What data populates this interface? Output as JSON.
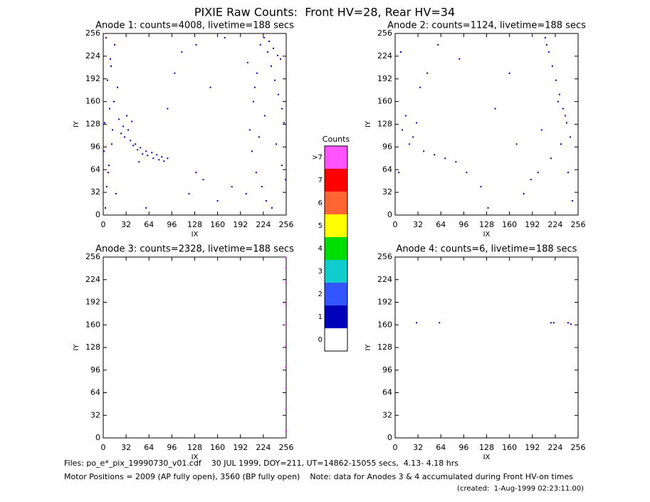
{
  "title": "PIXIE Raw Counts:  Front HV=28, Rear HV=34",
  "chart_data": [
    {
      "type": "scatter",
      "title": "Anode 1: counts=4008, livetime=188 secs",
      "x_label": "IX",
      "y_label": "IY",
      "xlim": [
        0,
        256
      ],
      "ylim": [
        0,
        256
      ],
      "xticks": [
        0,
        32,
        64,
        96,
        128,
        160,
        192,
        224,
        256
      ],
      "yticks": [
        0,
        32,
        64,
        96,
        128,
        160,
        192,
        224,
        256
      ],
      "color": "#0000cc",
      "x": [
        3,
        5,
        8,
        12,
        2,
        15,
        6,
        10,
        4,
        18,
        7,
        1,
        13,
        9,
        20,
        11,
        16,
        25,
        30,
        38,
        45,
        52,
        60,
        68,
        75,
        82,
        90,
        28,
        35,
        42,
        48,
        55,
        62,
        70,
        78,
        85,
        22,
        33,
        40,
        50,
        120,
        140,
        160,
        180,
        100,
        110,
        150,
        170,
        60,
        90,
        130,
        200,
        205,
        210,
        215,
        220,
        225,
        230,
        235,
        240,
        245,
        250,
        253,
        208,
        214,
        222,
        228,
        236,
        242,
        248,
        212,
        226,
        232,
        238,
        244,
        218,
        250,
        255,
        202,
        130
      ],
      "values": [
        10,
        40,
        70,
        100,
        130,
        160,
        190,
        220,
        250,
        30,
        60,
        90,
        120,
        150,
        180,
        210,
        240,
        115,
        110,
        105,
        100,
        95,
        90,
        88,
        85,
        82,
        80,
        125,
        120,
        98,
        92,
        86,
        84,
        80,
        78,
        76,
        135,
        140,
        132,
        75,
        30,
        50,
        20,
        40,
        200,
        230,
        180,
        250,
        10,
        150,
        60,
        30,
        120,
        160,
        200,
        240,
        250,
        230,
        210,
        190,
        170,
        150,
        130,
        90,
        60,
        40,
        20,
        10,
        100,
        220,
        180,
        140,
        245,
        235,
        225,
        110,
        70,
        50,
        215,
        240
      ]
    },
    {
      "type": "scatter",
      "title": "Anode 2: counts=1124, livetime=188 secs",
      "x_label": "IX",
      "y_label": "IY",
      "xlim": [
        0,
        256
      ],
      "ylim": [
        0,
        256
      ],
      "xticks": [
        0,
        32,
        64,
        96,
        128,
        160,
        192,
        224,
        256
      ],
      "yticks": [
        0,
        32,
        64,
        96,
        128,
        160,
        192,
        224,
        256
      ],
      "color": "#0000cc",
      "x": [
        5,
        10,
        15,
        20,
        8,
        25,
        30,
        40,
        55,
        70,
        85,
        100,
        120,
        140,
        160,
        180,
        200,
        210,
        215,
        220,
        225,
        230,
        235,
        240,
        245,
        248,
        212,
        228,
        238,
        60,
        90,
        130,
        170,
        190,
        35,
        45,
        205,
        218,
        232,
        242
      ],
      "values": [
        60,
        120,
        140,
        100,
        230,
        110,
        130,
        90,
        85,
        80,
        75,
        60,
        40,
        150,
        200,
        30,
        60,
        250,
        230,
        210,
        190,
        170,
        150,
        130,
        110,
        20,
        240,
        160,
        140,
        240,
        220,
        10,
        100,
        50,
        180,
        200,
        120,
        80,
        100,
        60
      ]
    },
    {
      "type": "scatter",
      "title": "Anode 3: counts=2328, livetime=188 secs",
      "x_label": "IX",
      "y_label": "IY",
      "xlim": [
        0,
        256
      ],
      "ylim": [
        0,
        256
      ],
      "xticks": [
        0,
        32,
        64,
        96,
        128,
        160,
        192,
        224,
        256
      ],
      "yticks": [
        0,
        32,
        64,
        96,
        128,
        160,
        192,
        224,
        256
      ],
      "color": "#ff55ff",
      "x": [
        255,
        255,
        255,
        255,
        255,
        255,
        255,
        255,
        255,
        255
      ],
      "values": [
        10,
        40,
        70,
        100,
        130,
        160,
        190,
        220,
        240,
        255
      ]
    },
    {
      "type": "scatter",
      "title": "Anode 4: counts=6, livetime=188 secs",
      "x_label": "IX",
      "y_label": "IY",
      "xlim": [
        0,
        256
      ],
      "ylim": [
        0,
        256
      ],
      "xticks": [
        0,
        32,
        64,
        96,
        128,
        160,
        192,
        224,
        256
      ],
      "yticks": [
        0,
        32,
        64,
        96,
        128,
        160,
        192,
        224,
        256
      ],
      "color": "#0000cc",
      "x": [
        30,
        62,
        218,
        222,
        242,
        246
      ],
      "values": [
        163,
        163,
        163,
        163,
        163,
        161
      ]
    }
  ],
  "colorbar": {
    "title": "Counts",
    "labels": [
      "0",
      "1",
      "2",
      "3",
      "4",
      "5",
      "6",
      "7",
      ">7"
    ],
    "colors": [
      "#ffffff",
      "#0000bb",
      "#3355ff",
      "#11cccc",
      "#00dd00",
      "#ffff00",
      "#ff6633",
      "#ff0000",
      "#ff55ff"
    ]
  },
  "footer": [
    "Files: po_e*_pix_19990730_v01.cdf    30 JUL 1999, DOY=211, UT=14862-15055 secs,  4.13- 4.18 hrs",
    "Motor Positions = 2009 (AP fully open), 3560 (BP fully open)    Note: data for Anodes 3 & 4 accumulated during Front HV-on times",
    "(created:  1-Aug-1999 02:23:11.00)"
  ]
}
